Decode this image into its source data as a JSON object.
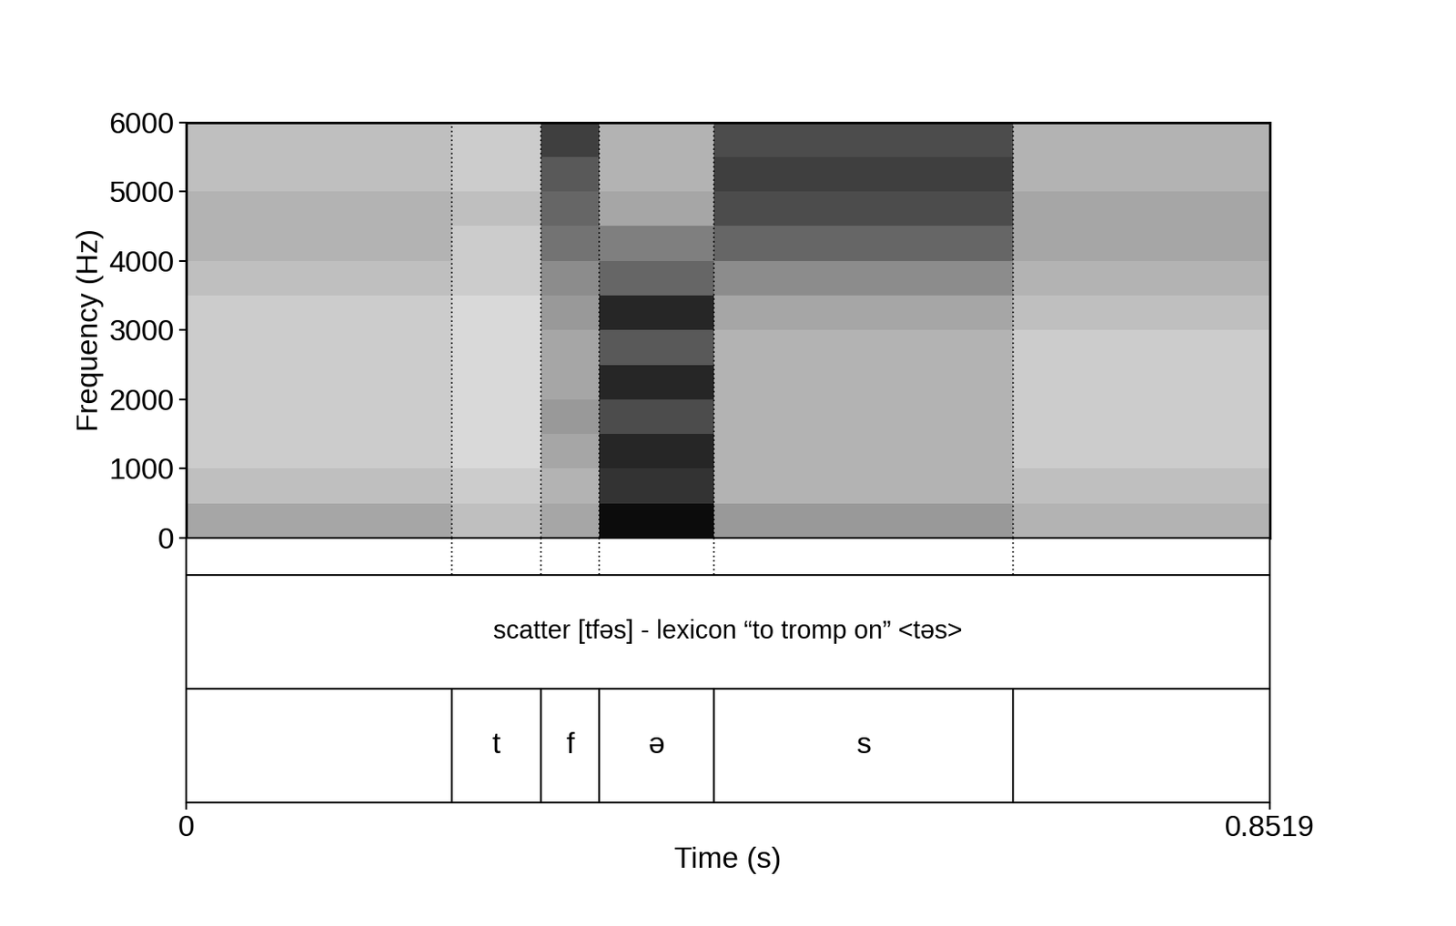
{
  "chart_data": {
    "type": "spectrogram",
    "x_label": "Time (s)",
    "y_label": "Frequency (Hz)",
    "xlim": [
      0,
      0.8519
    ],
    "xticks": [
      0,
      0.8519
    ],
    "ylim": [
      0,
      6000
    ],
    "yticks": [
      0,
      1000,
      2000,
      3000,
      4000,
      5000,
      6000
    ],
    "time_edges": [
      0,
      0.209,
      0.279,
      0.325,
      0.415,
      0.65,
      0.8519
    ],
    "frequency_edges": [
      0,
      500,
      1000,
      1500,
      2000,
      2500,
      3000,
      3500,
      4000,
      4500,
      5000,
      5500,
      6000
    ],
    "intensity": [
      [
        0.35,
        0.25,
        0.35,
        0.95,
        0.4,
        0.3
      ],
      [
        0.25,
        0.2,
        0.3,
        0.8,
        0.3,
        0.25
      ],
      [
        0.2,
        0.15,
        0.35,
        0.85,
        0.3,
        0.2
      ],
      [
        0.2,
        0.15,
        0.4,
        0.7,
        0.3,
        0.2
      ],
      [
        0.2,
        0.15,
        0.35,
        0.85,
        0.3,
        0.2
      ],
      [
        0.2,
        0.15,
        0.35,
        0.65,
        0.3,
        0.2
      ],
      [
        0.2,
        0.15,
        0.4,
        0.85,
        0.35,
        0.25
      ],
      [
        0.25,
        0.2,
        0.45,
        0.6,
        0.45,
        0.3
      ],
      [
        0.3,
        0.2,
        0.55,
        0.5,
        0.6,
        0.35
      ],
      [
        0.3,
        0.25,
        0.6,
        0.35,
        0.7,
        0.35
      ],
      [
        0.25,
        0.2,
        0.65,
        0.3,
        0.75,
        0.3
      ],
      [
        0.25,
        0.2,
        0.75,
        0.3,
        0.7,
        0.3
      ]
    ],
    "intensity_range": [
      0,
      1
    ],
    "tiers": [
      {
        "intervals": [
          {
            "start": 0,
            "end": 0.8519,
            "label": "scatter [tfəs] - lexicon “to tromp on” <təs>"
          }
        ]
      },
      {
        "intervals": [
          {
            "start": 0.209,
            "end": 0.279,
            "label": "t"
          },
          {
            "start": 0.279,
            "end": 0.325,
            "label": "f"
          },
          {
            "start": 0.325,
            "end": 0.415,
            "label": "ə"
          },
          {
            "start": 0.415,
            "end": 0.65,
            "label": "s"
          }
        ]
      }
    ]
  }
}
